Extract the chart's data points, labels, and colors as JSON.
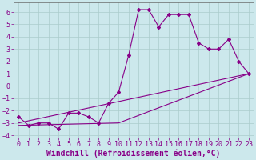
{
  "xlabel": "Windchill (Refroidissement éolien,°C)",
  "background_color": "#cce8ec",
  "grid_color": "#aacccc",
  "line_color": "#880088",
  "xlim": [
    -0.5,
    23.5
  ],
  "ylim": [
    -4.2,
    6.8
  ],
  "xticks": [
    0,
    1,
    2,
    3,
    4,
    5,
    6,
    7,
    8,
    9,
    10,
    11,
    12,
    13,
    14,
    15,
    16,
    17,
    18,
    19,
    20,
    21,
    22,
    23
  ],
  "yticks": [
    -4,
    -3,
    -2,
    -1,
    0,
    1,
    2,
    3,
    4,
    5,
    6
  ],
  "line1_x": [
    0,
    1,
    2,
    3,
    4,
    5,
    6,
    7,
    8,
    9,
    10,
    11,
    12,
    13,
    14,
    15,
    16,
    17,
    18,
    19,
    20,
    21,
    22,
    23
  ],
  "line1_y": [
    -2.5,
    -3.2,
    -3.0,
    -3.0,
    -3.5,
    -2.2,
    -2.2,
    -2.5,
    -3.0,
    -1.4,
    -0.5,
    2.5,
    6.2,
    6.2,
    4.8,
    5.8,
    5.8,
    5.8,
    3.5,
    3.0,
    3.0,
    3.8,
    2.0,
    1.0
  ],
  "line2_x": [
    0,
    23
  ],
  "line2_y": [
    -3.0,
    1.0
  ],
  "line3_x": [
    0,
    10,
    23
  ],
  "line3_y": [
    -3.2,
    -3.0,
    1.0
  ],
  "figsize": [
    3.2,
    2.0
  ],
  "dpi": 100,
  "tick_fontsize": 6,
  "xlabel_fontsize": 7
}
